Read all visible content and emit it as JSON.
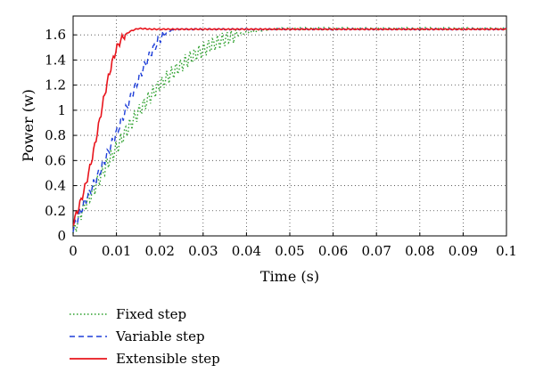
{
  "chart_data": {
    "type": "line",
    "xlabel": "Time (s)",
    "ylabel": "Power (w)",
    "xlim": [
      0,
      0.1
    ],
    "ylim": [
      0,
      1.75
    ],
    "x_ticks": [
      "0",
      "0.01",
      "0.02",
      "0.03",
      "0.04",
      "0.05",
      "0.06",
      "0.07",
      "0.08",
      "0.09",
      "0.1"
    ],
    "y_ticks": [
      "0",
      "0.2",
      "0.4",
      "0.6",
      "0.8",
      "1",
      "1.2",
      "1.4",
      "1.6"
    ],
    "grid": true,
    "legend_position": "bottom-left",
    "series": [
      {
        "name": "Fixed step",
        "color": "#2ca02c",
        "style": "dotted",
        "x": [
          0,
          0.002,
          0.004,
          0.006,
          0.008,
          0.01,
          0.012,
          0.014,
          0.016,
          0.018,
          0.02,
          0.022,
          0.024,
          0.026,
          0.028,
          0.03,
          0.032,
          0.034,
          0.036,
          0.038,
          0.04,
          0.042,
          0.044,
          0.046,
          0.048,
          0.05,
          0.06,
          0.07,
          0.08,
          0.09,
          0.1
        ],
        "y": [
          0.02,
          0.2,
          0.32,
          0.45,
          0.58,
          0.7,
          0.82,
          0.93,
          1.03,
          1.12,
          1.2,
          1.27,
          1.33,
          1.39,
          1.44,
          1.48,
          1.52,
          1.55,
          1.58,
          1.6,
          1.62,
          1.63,
          1.64,
          1.645,
          1.65,
          1.65,
          1.65,
          1.65,
          1.65,
          1.65,
          1.65
        ]
      },
      {
        "name": "Variable step",
        "color": "#1f3fd8",
        "style": "dashed",
        "x": [
          0,
          0.002,
          0.004,
          0.006,
          0.008,
          0.01,
          0.012,
          0.014,
          0.016,
          0.018,
          0.02,
          0.022,
          0.024,
          0.026,
          0.028,
          0.03,
          0.032,
          0.04,
          0.05,
          0.06,
          0.07,
          0.08,
          0.09,
          0.1
        ],
        "y": [
          0.05,
          0.22,
          0.36,
          0.5,
          0.66,
          0.82,
          0.99,
          1.16,
          1.32,
          1.46,
          1.57,
          1.63,
          1.645,
          1.645,
          1.645,
          1.645,
          1.645,
          1.645,
          1.645,
          1.645,
          1.645,
          1.645,
          1.645,
          1.645
        ]
      },
      {
        "name": "Extensible step",
        "color": "#e8141c",
        "style": "solid",
        "x": [
          0,
          0.001,
          0.002,
          0.003,
          0.004,
          0.005,
          0.006,
          0.007,
          0.008,
          0.009,
          0.01,
          0.011,
          0.012,
          0.013,
          0.014,
          0.015,
          0.016,
          0.018,
          0.02,
          0.03,
          0.04,
          0.05,
          0.06,
          0.07,
          0.08,
          0.09,
          0.1
        ],
        "y": [
          0.1,
          0.2,
          0.3,
          0.42,
          0.56,
          0.72,
          0.9,
          1.08,
          1.24,
          1.38,
          1.49,
          1.56,
          1.6,
          1.625,
          1.64,
          1.65,
          1.65,
          1.645,
          1.645,
          1.645,
          1.645,
          1.645,
          1.645,
          1.645,
          1.645,
          1.645,
          1.645
        ]
      }
    ]
  }
}
